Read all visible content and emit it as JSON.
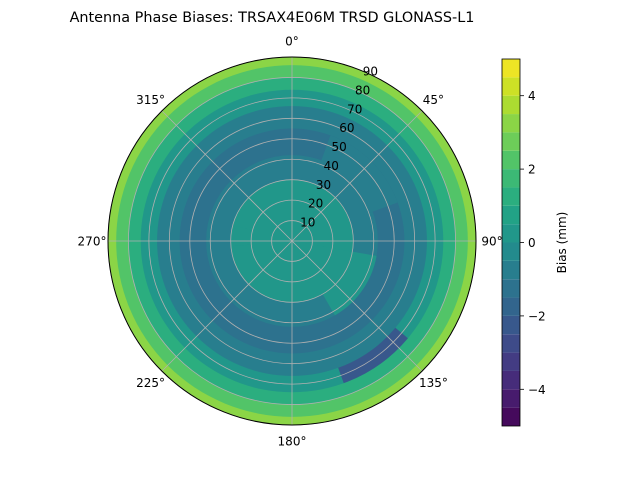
{
  "chart_data": {
    "type": "heatmap",
    "projection": "polar",
    "title": "Antenna Phase Biases: TRSAX4E06M      TRSD GLONASS-L1",
    "theta_direction": "clockwise",
    "theta_zero": "top",
    "angle_ticks": [
      "0°",
      "45°",
      "90°",
      "135°",
      "180°",
      "225°",
      "270°",
      "315°"
    ],
    "radial_range": [
      0,
      90
    ],
    "radial_ticks": [
      "10",
      "20",
      "30",
      "40",
      "50",
      "60",
      "70",
      "80",
      "90"
    ],
    "grid": true,
    "colorbar": {
      "label": "Bias (mm)",
      "range": [
        -5,
        5
      ],
      "levels": [
        -5,
        -4.5,
        -4,
        -3.5,
        -3,
        -2.5,
        -2,
        -1.5,
        -1,
        -0.5,
        0,
        0.5,
        1,
        1.5,
        2,
        2.5,
        3,
        3.5,
        4,
        4.5,
        5
      ],
      "ticks": [
        "−4",
        "−2",
        "0",
        "2",
        "4"
      ],
      "tick_values": [
        -4,
        -2,
        0,
        2,
        4
      ],
      "band_colors": [
        "#440154",
        "#482475",
        "#414487",
        "#355f8d",
        "#2a788e",
        "#21918c",
        "#22a884",
        "#44bf70",
        "#7ad151",
        "#bddf26",
        "#fde725"
      ]
    },
    "contour_rings": [
      {
        "zenith_max": 90,
        "bias": 3.2
      },
      {
        "zenith_max": 86,
        "bias": 2.3
      },
      {
        "zenith_max": 80,
        "bias": 1.4
      },
      {
        "zenith_max": 74,
        "bias": 0.4
      },
      {
        "zenith_max": 66,
        "bias": -0.6
      },
      {
        "zenith_max": 55,
        "bias": -1.4
      },
      {
        "zenith_max": 42,
        "bias": -0.7
      },
      {
        "zenith_max": 30,
        "bias": 0.3
      }
    ],
    "contour_patches": [
      {
        "bias": 0.3,
        "azimuth_range": [
          265,
          285
        ],
        "zenith_range": [
          20,
          30
        ]
      },
      {
        "bias": 0.3,
        "azimuth_range": [
          100,
          150
        ],
        "zenith_range": [
          5,
          42
        ]
      },
      {
        "bias": -2.4,
        "azimuth_range": [
          130,
          160
        ],
        "zenith_range": [
          66,
          74
        ]
      },
      {
        "bias": -0.6,
        "azimuth_range": [
          20,
          70
        ],
        "zenith_range": [
          30,
          55
        ]
      }
    ]
  }
}
